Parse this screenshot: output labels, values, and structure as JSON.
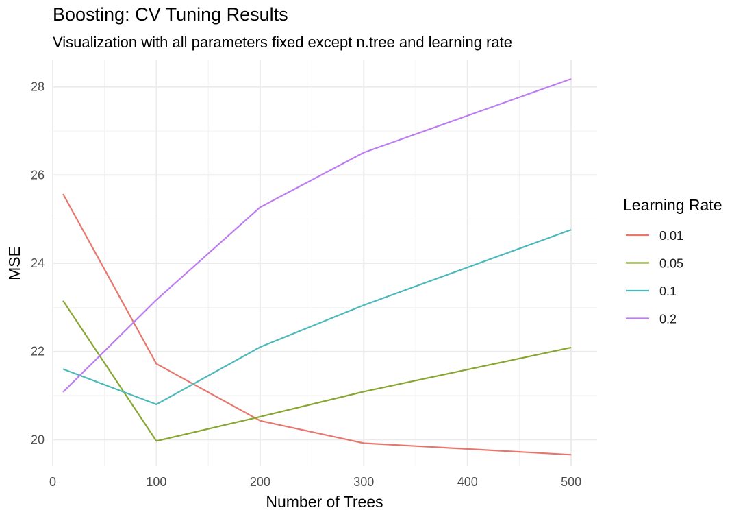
{
  "chart_data": {
    "type": "line",
    "title": "Boosting: CV Tuning Results",
    "subtitle": "Visualization with all parameters fixed except n.tree and learning rate",
    "xlabel": "Number of Trees",
    "ylabel": "MSE",
    "x": [
      10,
      100,
      200,
      300,
      500
    ],
    "xlim": [
      0,
      525
    ],
    "ylim": [
      19.4,
      28.6
    ],
    "x_ticks": [
      0,
      100,
      200,
      300,
      400,
      500
    ],
    "y_ticks": [
      20,
      22,
      24,
      26,
      28
    ],
    "grid": true,
    "legend": {
      "title": "Learning Rate",
      "position": "right"
    },
    "series": [
      {
        "name": "0.01",
        "color": "#E7766D",
        "values": [
          25.57,
          21.72,
          20.43,
          19.92,
          19.66
        ]
      },
      {
        "name": "0.05",
        "color": "#86A62F",
        "values": [
          23.15,
          19.97,
          20.52,
          21.09,
          22.09
        ]
      },
      {
        "name": "0.1",
        "color": "#4BB8BC",
        "values": [
          21.6,
          20.8,
          22.1,
          23.05,
          24.76
        ]
      },
      {
        "name": "0.2",
        "color": "#BD7CF0",
        "values": [
          21.08,
          23.17,
          25.27,
          26.51,
          28.18
        ]
      }
    ]
  }
}
